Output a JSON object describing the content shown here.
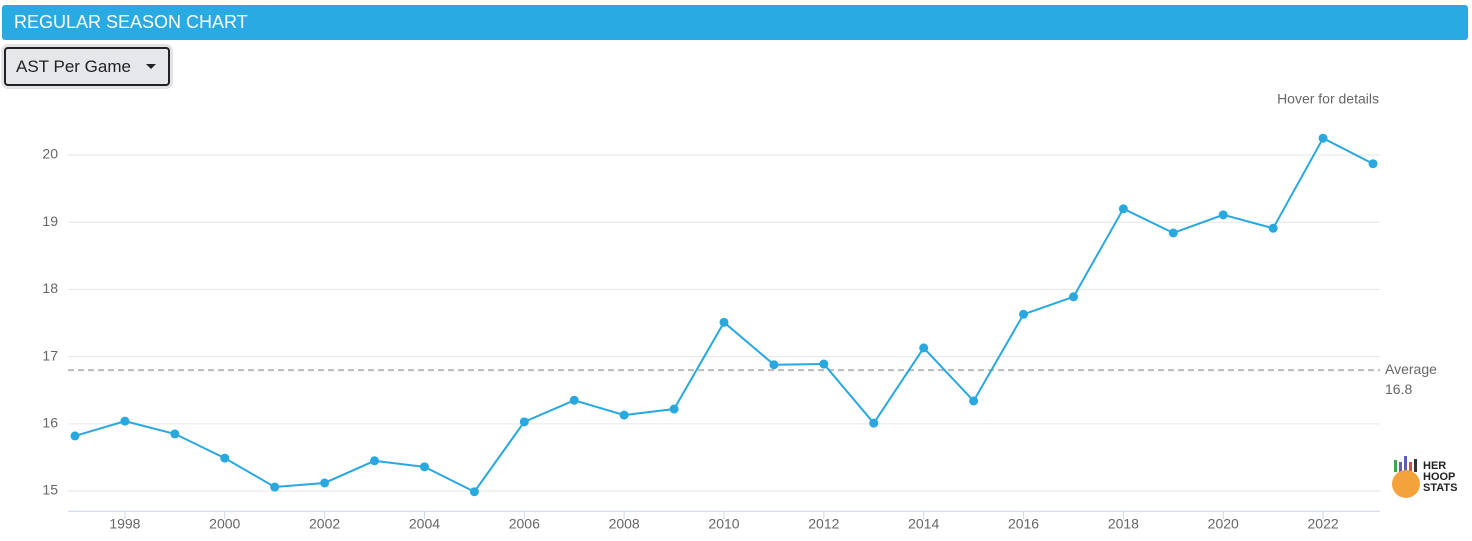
{
  "header": {
    "title": "REGULAR SEASON CHART"
  },
  "dropdown": {
    "label": "AST Per Game"
  },
  "logo": [
    "HER",
    "HOOP",
    "STATS"
  ],
  "chart_data": {
    "type": "line",
    "hint": "Hover for details",
    "x": [
      1997,
      1998,
      1999,
      2000,
      2001,
      2002,
      2003,
      2004,
      2005,
      2006,
      2007,
      2008,
      2009,
      2010,
      2011,
      2012,
      2013,
      2014,
      2015,
      2016,
      2017,
      2018,
      2019,
      2020,
      2021,
      2022,
      2023
    ],
    "series": [
      {
        "name": "AST Per Game",
        "color": "#29a8e0",
        "values": [
          15.82,
          16.04,
          15.85,
          15.49,
          15.06,
          15.12,
          15.45,
          15.36,
          14.99,
          16.03,
          16.35,
          16.13,
          16.22,
          17.51,
          16.88,
          16.89,
          16.01,
          17.13,
          16.34,
          17.63,
          17.89,
          19.2,
          18.84,
          19.11,
          18.91,
          20.25,
          19.87
        ]
      }
    ],
    "average": {
      "label": "Average",
      "value": 16.8
    },
    "xlim": [
      1996.86,
      2023.14
    ],
    "xticks": [
      1998,
      2000,
      2002,
      2004,
      2006,
      2008,
      2010,
      2012,
      2014,
      2016,
      2018,
      2020,
      2022
    ],
    "ylim": [
      14.7,
      20.5
    ],
    "yticks": [
      15,
      16,
      17,
      18,
      19,
      20
    ],
    "grid": true
  }
}
